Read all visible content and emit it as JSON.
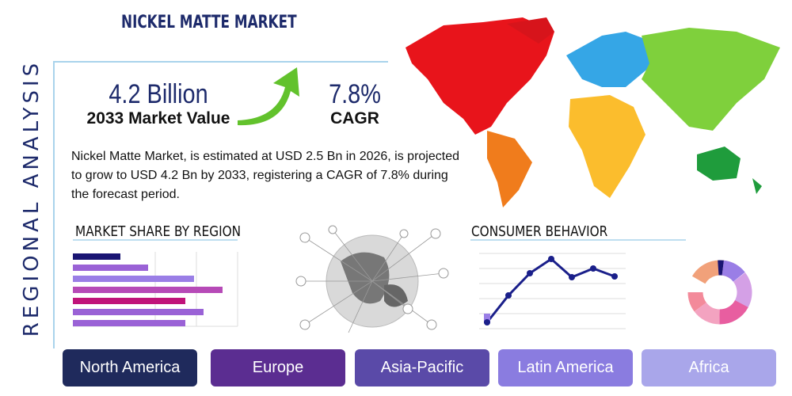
{
  "header": {
    "title": "NICKEL MATTE MARKET",
    "side_label": "REGIONAL ANALYSIS"
  },
  "stats": [
    {
      "value": "4.2 Billion",
      "label": "2033 Market Value"
    },
    {
      "value": "7.8%",
      "label": "CAGR"
    }
  ],
  "description": "Nickel Matte Market, is estimated at USD 2.5 Bn in 2026, is projected to grow to USD 4.2 Bn by 2033, registering a CAGR of 7.8% during the forecast period.",
  "sections": {
    "market_share": "MARKET SHARE BY REGION",
    "consumer_behavior": "CONSUMER BEHAVIOR"
  },
  "regions": [
    "North America",
    "Europe",
    "Asia-Pacific",
    "Latin America",
    "Africa"
  ]
}
